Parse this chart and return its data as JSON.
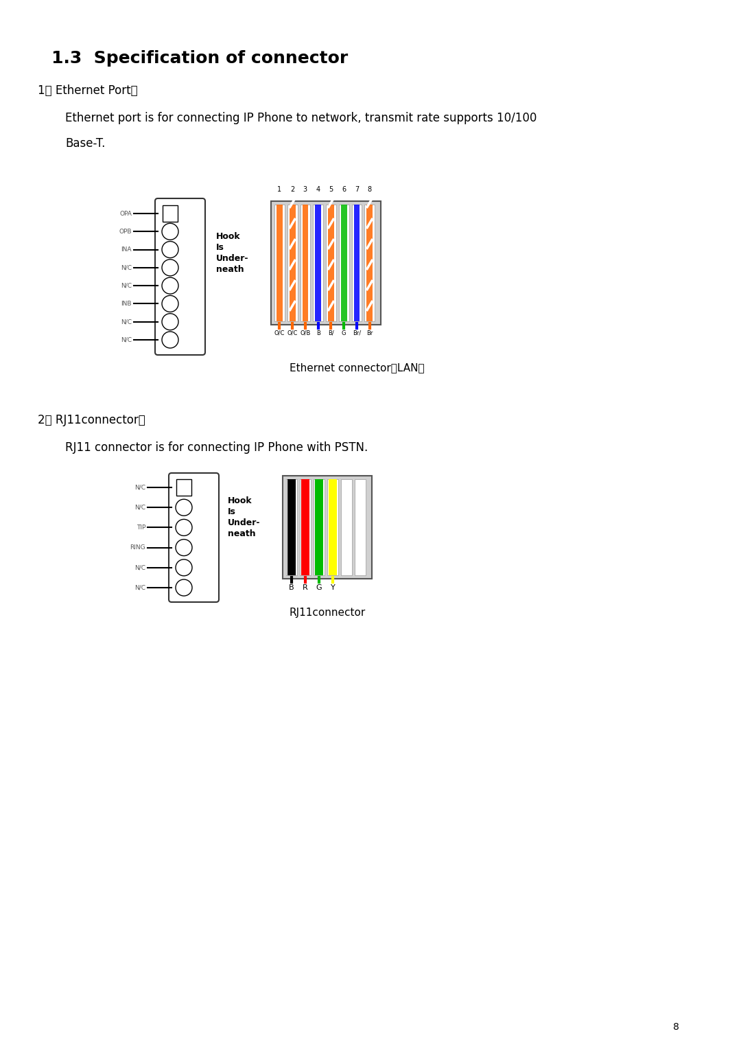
{
  "title": "1.3  Specification of connector",
  "section1_header": "1、 Ethernet Port：",
  "section1_text1": "Ethernet port is for connecting IP Phone to network, transmit rate supports 10/100",
  "section1_text2": "Base-T.",
  "section2_header": "2、 RJ11connector：",
  "section2_text": "RJ11 connector is for connecting IP Phone with PSTN.",
  "lan_caption": "Ethernet connector（LAN）",
  "rj11_caption": "RJ11connector",
  "page_num": "8",
  "lan_pin_labels": [
    "OPA",
    "OPB",
    "INA",
    "N/C",
    "N/C",
    "INB",
    "N/C",
    "N/C"
  ],
  "lan_pin_numbers": [
    "1",
    "2",
    "3",
    "4",
    "5",
    "6",
    "7",
    "8"
  ],
  "lan_wire_colors": [
    "#FF6600",
    "#FF6600",
    "#FF6600",
    "#0000FF",
    "#FF6600",
    "#00BB00",
    "#0000FF",
    "#FF6600"
  ],
  "lan_wire_stripes": [
    false,
    true,
    false,
    false,
    true,
    false,
    false,
    true
  ],
  "lan_bottom_labels": [
    "O/C",
    "O/C",
    "O/B",
    "B",
    "B/",
    "G",
    "Br/",
    "Br"
  ],
  "rj11_pin_labels": [
    "N/C",
    "N/C",
    "TIP",
    "RING",
    "N/C",
    "N/C"
  ],
  "rj11_wire_colors": [
    "#000000",
    "#FF0000",
    "#00BB00",
    "#FFFF00"
  ],
  "rj11_bottom_labels": [
    "B",
    "R",
    "G",
    "Y"
  ],
  "bg_color": "#FFFFFF",
  "text_color": "#000000",
  "connector_bg": "#D0D0D0",
  "connector_border": "#555555"
}
